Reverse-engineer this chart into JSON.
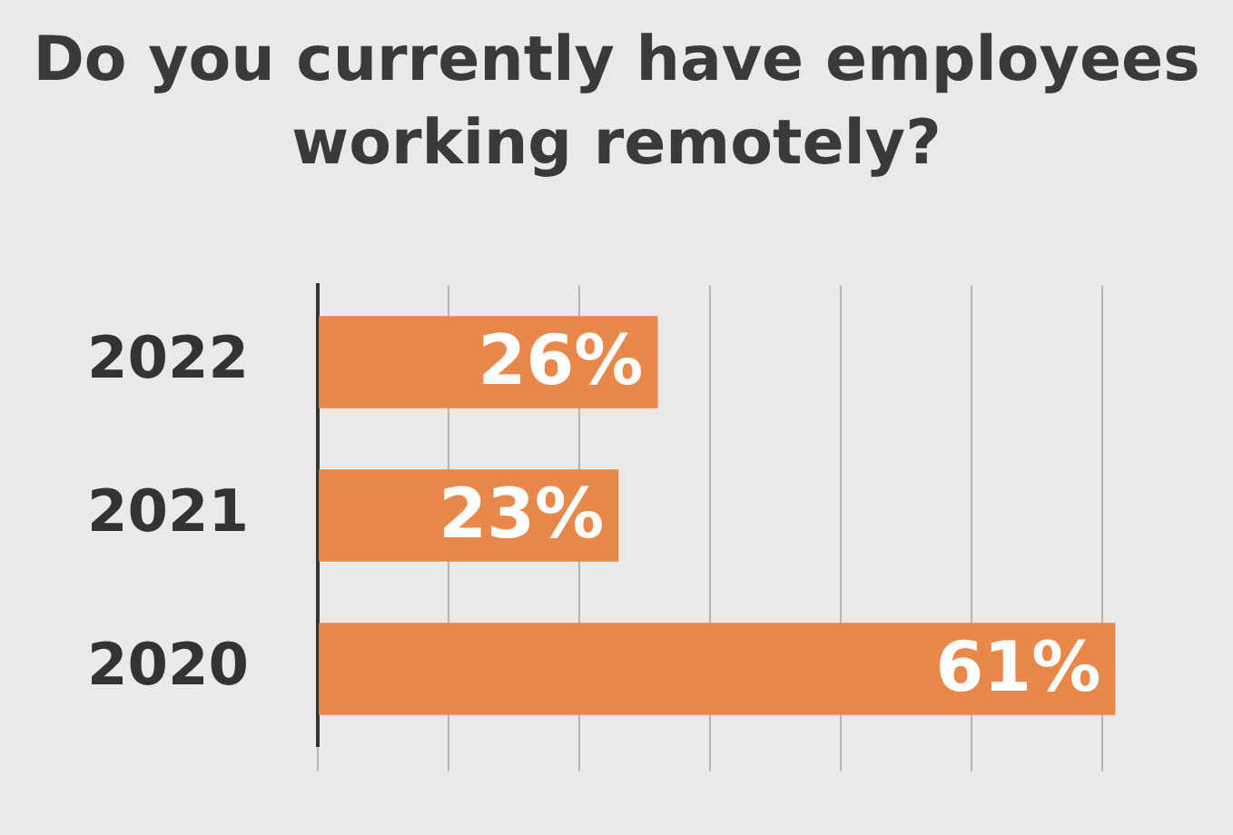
{
  "chart_data": {
    "type": "bar",
    "orientation": "horizontal",
    "title": "Do you currently have employees working remotely?",
    "categories": [
      "2022",
      "2021",
      "2020"
    ],
    "values": [
      26,
      23,
      61
    ],
    "value_labels": [
      "26%",
      "23%",
      "61%"
    ],
    "color": "#e8894b",
    "xticks": [
      {
        "value": 0,
        "label": null
      },
      {
        "value": 10,
        "label": null
      },
      {
        "value": 20,
        "label": null
      },
      {
        "value": 30,
        "label": null
      },
      {
        "value": 40,
        "label": null
      },
      {
        "value": 50,
        "label": null
      },
      {
        "value": 60,
        "label": null
      }
    ],
    "grid": "x",
    "tick_labels": "y",
    "legend": false
  }
}
